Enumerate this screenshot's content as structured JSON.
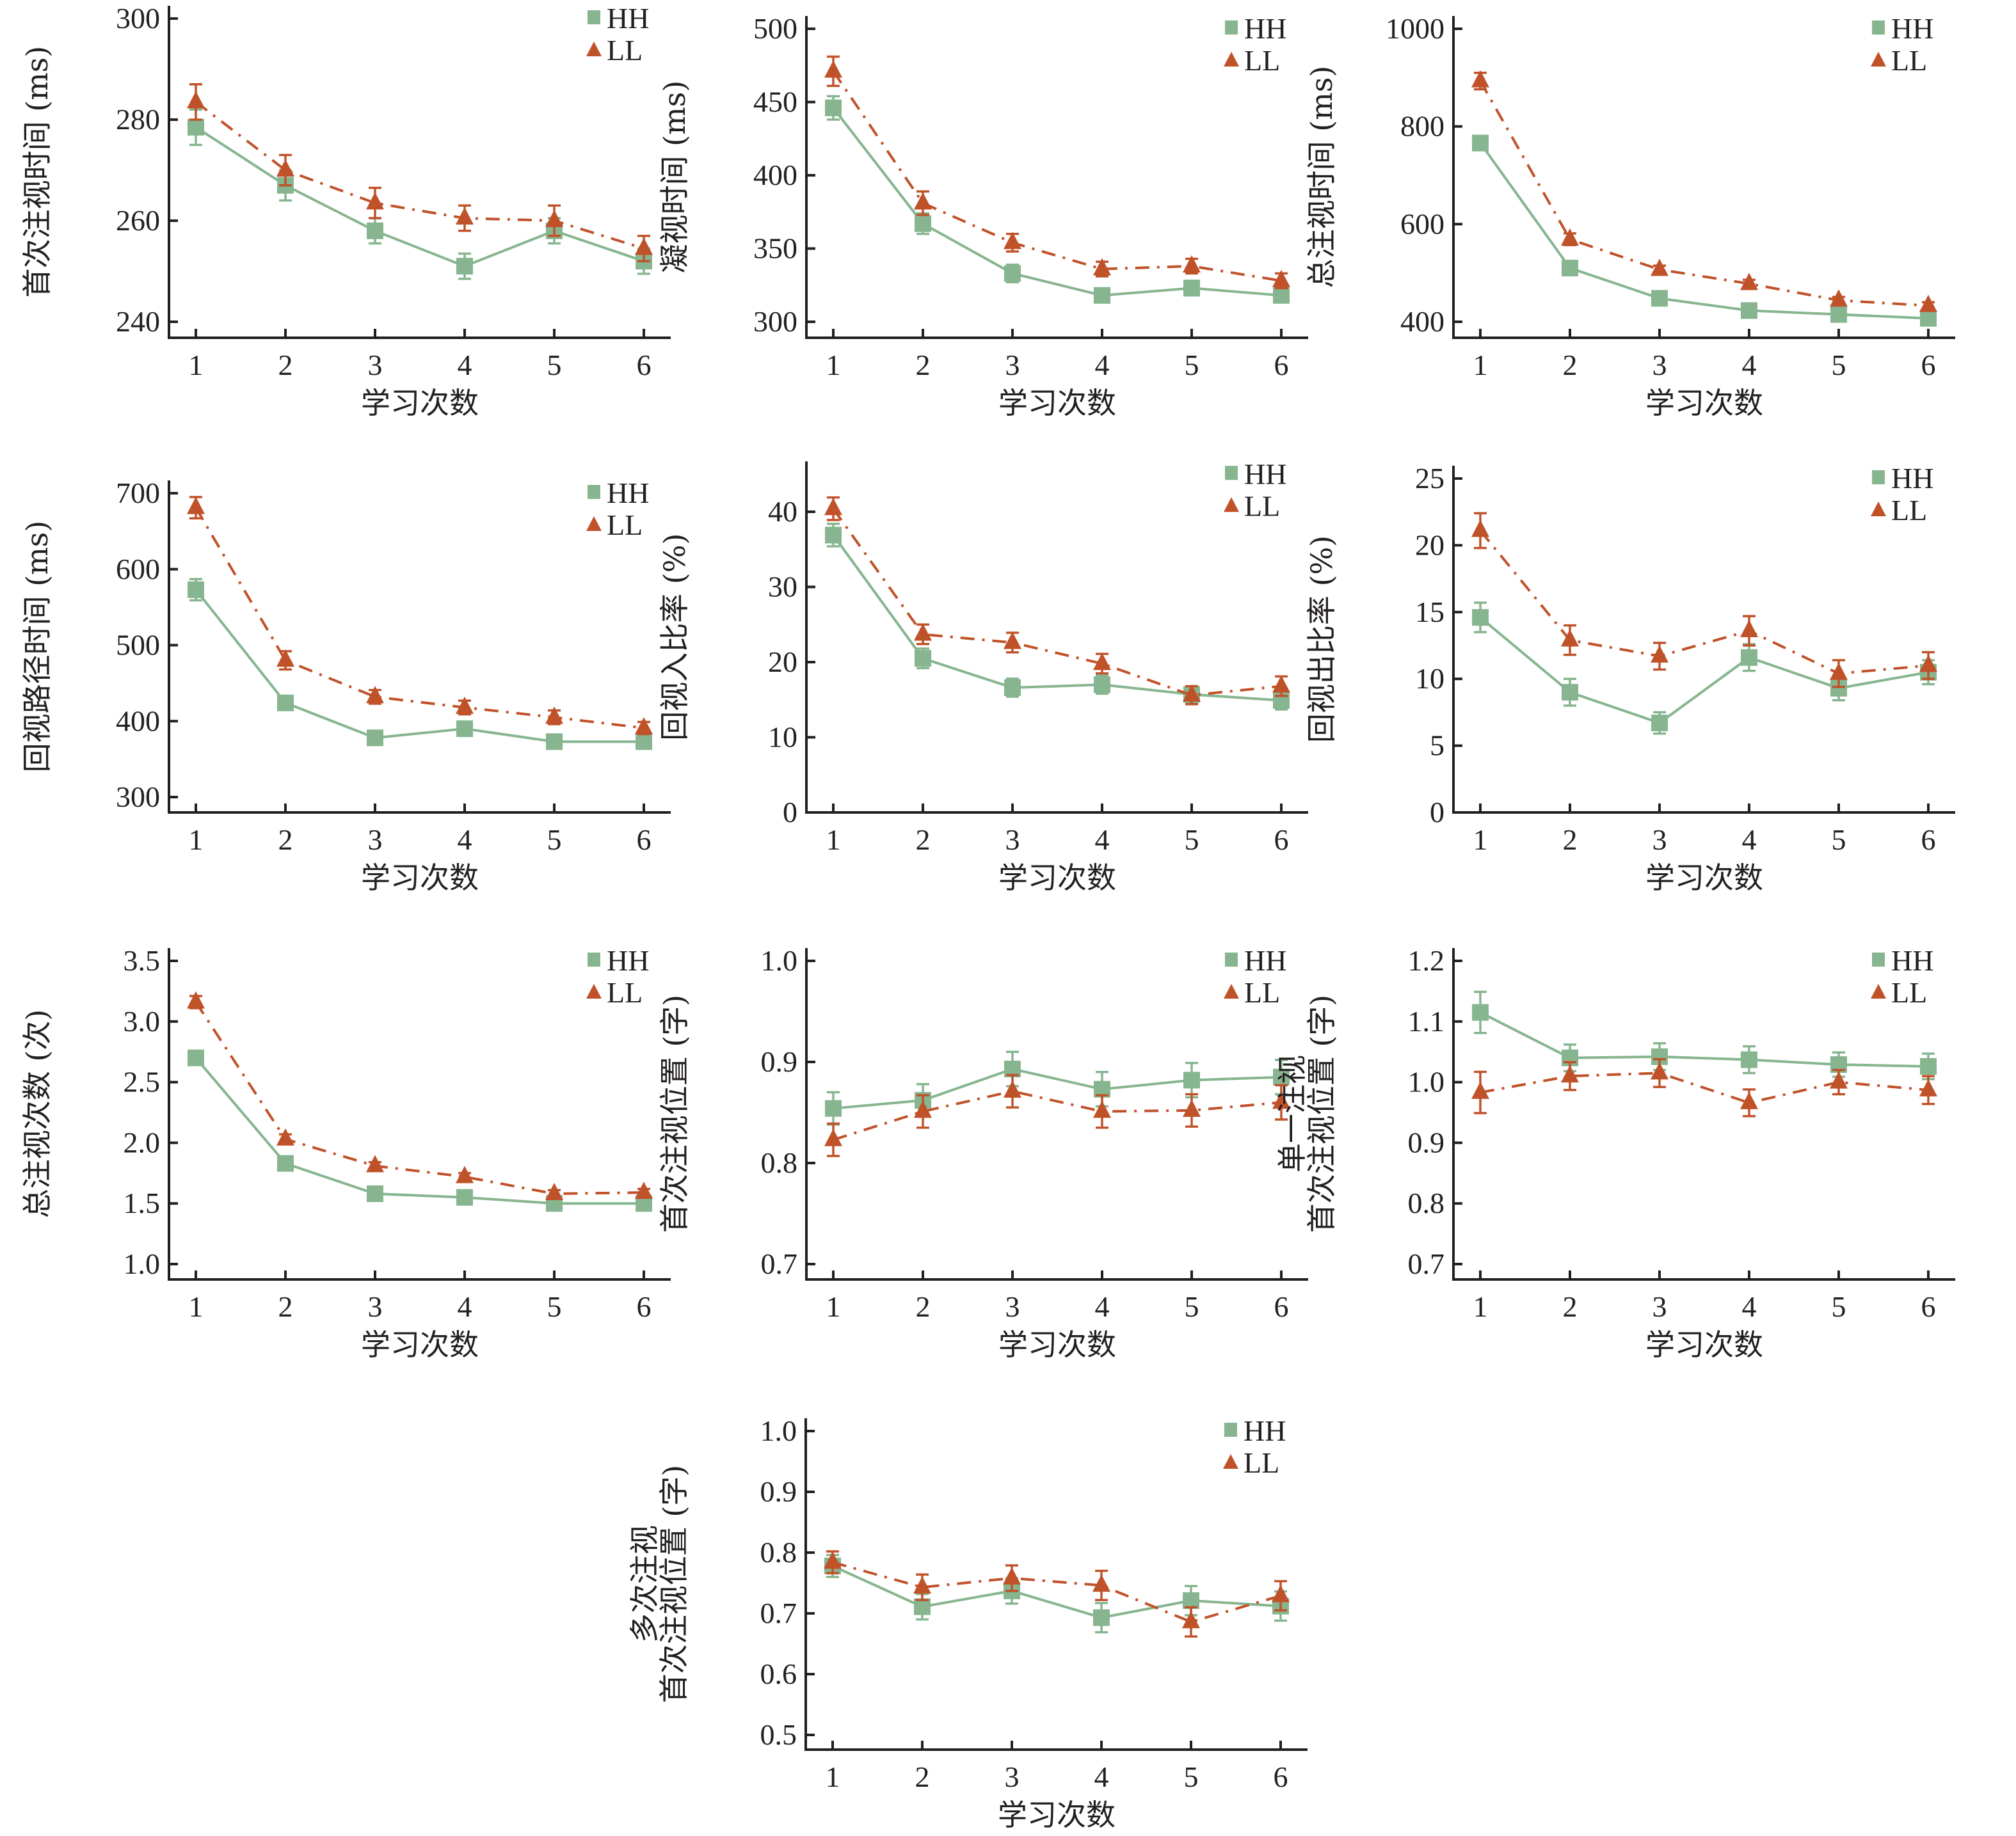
{
  "chart_data": [
    {
      "type": "line",
      "ylabel": "首次注视时间 (ms)",
      "xlabel": "学习次数",
      "categories": [
        "1",
        "2",
        "3",
        "4",
        "5",
        "6"
      ],
      "ylim": [
        240,
        300
      ],
      "yticks": [
        "240",
        "260",
        "280",
        "300"
      ],
      "legend": "top-right",
      "series": [
        {
          "name": "HH",
          "values": [
            278.5,
            267,
            258,
            251,
            258,
            252
          ],
          "errors": [
            3.5,
            3,
            2.5,
            2.5,
            2.5,
            2.5
          ]
        },
        {
          "name": "LL",
          "values": [
            283.5,
            270,
            263.5,
            260.5,
            260,
            254.5
          ],
          "errors": [
            3.5,
            3,
            3,
            2.5,
            3,
            2.5
          ]
        }
      ]
    },
    {
      "type": "line",
      "ylabel": "凝视时间 (ms)",
      "xlabel": "学习次数",
      "categories": [
        "1",
        "2",
        "3",
        "4",
        "5",
        "6"
      ],
      "ylim": [
        300,
        500
      ],
      "yticks": [
        "300",
        "350",
        "400",
        "450",
        "500"
      ],
      "legend": "top-right",
      "series": [
        {
          "name": "HH",
          "values": [
            446,
            367,
            333,
            318,
            323,
            318
          ],
          "errors": [
            8,
            7,
            6,
            4,
            5,
            4
          ]
        },
        {
          "name": "LL",
          "values": [
            471,
            381,
            354,
            336,
            338,
            328
          ],
          "errors": [
            10,
            8,
            6,
            5,
            5,
            5
          ]
        }
      ]
    },
    {
      "type": "line",
      "ylabel": "总注视时间 (ms)",
      "xlabel": "学习次数",
      "categories": [
        "1",
        "2",
        "3",
        "4",
        "5",
        "6"
      ],
      "ylim": [
        400,
        1000
      ],
      "yticks": [
        "400",
        "600",
        "800",
        "1000"
      ],
      "legend": "top-right",
      "series": [
        {
          "name": "HH",
          "values": [
            766,
            510,
            448,
            423,
            415,
            407
          ],
          "errors": [
            14,
            8,
            7,
            7,
            7,
            7
          ]
        },
        {
          "name": "LL",
          "values": [
            893,
            569,
            507,
            478,
            444,
            433
          ],
          "errors": [
            17,
            12,
            8,
            8,
            7,
            7
          ]
        }
      ]
    },
    {
      "type": "line",
      "ylabel": "回视路径时间 (ms)",
      "xlabel": "学习次数",
      "categories": [
        "1",
        "2",
        "3",
        "4",
        "5",
        "6"
      ],
      "ylim": [
        300,
        700
      ],
      "yticks": [
        "300",
        "400",
        "500",
        "600",
        "700"
      ],
      "legend": "top-right",
      "series": [
        {
          "name": "HH",
          "values": [
            573,
            424,
            378,
            390,
            373,
            373
          ],
          "errors": [
            14,
            9,
            8,
            8,
            7,
            7
          ]
        },
        {
          "name": "LL",
          "values": [
            681,
            480,
            432,
            418,
            405,
            391
          ],
          "errors": [
            14,
            12,
            9,
            9,
            9,
            8
          ]
        }
      ]
    },
    {
      "type": "line",
      "ylabel": "回视入比率 (%)",
      "xlabel": "学习次数",
      "categories": [
        "1",
        "2",
        "3",
        "4",
        "5",
        "6"
      ],
      "ylim": [
        0,
        45
      ],
      "yticks": [
        "0",
        "10",
        "20",
        "30",
        "40"
      ],
      "legend": "top-right",
      "series": [
        {
          "name": "HH",
          "values": [
            36.9,
            20.5,
            16.6,
            17.0,
            15.7,
            14.9
          ],
          "errors": [
            1.5,
            1.3,
            1.2,
            1.2,
            1.0,
            1.2
          ]
        },
        {
          "name": "LL",
          "values": [
            40.4,
            23.7,
            22.6,
            19.8,
            15.6,
            16.8
          ],
          "errors": [
            1.5,
            1.3,
            1.3,
            1.3,
            1.2,
            1.3
          ]
        }
      ]
    },
    {
      "type": "line",
      "ylabel": "回视出比率 (%)",
      "xlabel": "学习次数",
      "categories": [
        "1",
        "2",
        "3",
        "4",
        "5",
        "6"
      ],
      "ylim": [
        0,
        25
      ],
      "yticks": [
        "0",
        "5",
        "10",
        "15",
        "20",
        "25"
      ],
      "legend": "top-right",
      "series": [
        {
          "name": "HH",
          "values": [
            14.6,
            9.0,
            6.7,
            11.6,
            9.3,
            10.5
          ],
          "errors": [
            1.1,
            1.0,
            0.8,
            1.0,
            0.9,
            0.9
          ]
        },
        {
          "name": "LL",
          "values": [
            21.1,
            12.9,
            11.7,
            13.6,
            10.4,
            11.0
          ],
          "errors": [
            1.3,
            1.1,
            1.0,
            1.1,
            1.0,
            1.0
          ]
        }
      ]
    },
    {
      "type": "line",
      "ylabel": "总注视次数 (次)",
      "xlabel": "学习次数",
      "categories": [
        "1",
        "2",
        "3",
        "4",
        "5",
        "6"
      ],
      "ylim": [
        1.0,
        3.5
      ],
      "yticks": [
        "1.0",
        "1.5",
        "2.0",
        "2.5",
        "3.0",
        "3.5"
      ],
      "legend": "top-right",
      "series": [
        {
          "name": "HH",
          "values": [
            2.7,
            1.83,
            1.58,
            1.55,
            1.5,
            1.5
          ],
          "errors": [
            0.04,
            0.02,
            0.02,
            0.02,
            0.02,
            0.02
          ]
        },
        {
          "name": "LL",
          "values": [
            3.16,
            2.03,
            1.81,
            1.72,
            1.58,
            1.59
          ],
          "errors": [
            0.05,
            0.04,
            0.03,
            0.03,
            0.03,
            0.03
          ]
        }
      ]
    },
    {
      "type": "line",
      "ylabel": "首次注视位置 (字)",
      "xlabel": "学习次数",
      "categories": [
        "1",
        "2",
        "3",
        "4",
        "5",
        "6"
      ],
      "ylim": [
        0.7,
        1.0
      ],
      "yticks": [
        "0.7",
        "0.8",
        "0.9",
        "1.0"
      ],
      "legend": "top-right",
      "series": [
        {
          "name": "HH",
          "values": [
            0.854,
            0.862,
            0.893,
            0.873,
            0.882,
            0.885
          ],
          "errors": [
            0.016,
            0.016,
            0.017,
            0.017,
            0.017,
            0.017
          ]
        },
        {
          "name": "LL",
          "values": [
            0.823,
            0.851,
            0.871,
            0.851,
            0.852,
            0.86
          ],
          "errors": [
            0.016,
            0.016,
            0.016,
            0.016,
            0.016,
            0.017
          ]
        }
      ]
    },
    {
      "type": "line",
      "ylabel": "单一注视首次注视位置 (字)",
      "ylabel_lines": [
        "单一注视",
        "首次注视位置 (字)"
      ],
      "xlabel": "学习次数",
      "categories": [
        "1",
        "2",
        "3",
        "4",
        "5",
        "6"
      ],
      "ylim": [
        0.7,
        1.2
      ],
      "yticks": [
        "0.7",
        "0.8",
        "0.9",
        "1.0",
        "1.1",
        "1.2"
      ],
      "legend": "top-right",
      "series": [
        {
          "name": "HH",
          "values": [
            1.115,
            1.04,
            1.042,
            1.037,
            1.029,
            1.026
          ],
          "errors": [
            0.034,
            0.022,
            0.022,
            0.022,
            0.02,
            0.021
          ]
        },
        {
          "name": "LL",
          "values": [
            0.983,
            1.01,
            1.015,
            0.966,
            1.0,
            0.987
          ],
          "errors": [
            0.034,
            0.023,
            0.023,
            0.022,
            0.02,
            0.023
          ]
        }
      ]
    },
    {
      "type": "line",
      "ylabel": "多次注视首次注视位置 (字)",
      "ylabel_lines": [
        "多次注视",
        "首次注视位置 (字)"
      ],
      "xlabel": "学习次数",
      "categories": [
        "1",
        "2",
        "3",
        "4",
        "5",
        "6"
      ],
      "ylim": [
        0.5,
        1.0
      ],
      "yticks": [
        "0.5",
        "0.6",
        "0.7",
        "0.8",
        "0.9",
        "1.0"
      ],
      "legend": "top-right",
      "series": [
        {
          "name": "HH",
          "values": [
            0.778,
            0.711,
            0.737,
            0.693,
            0.721,
            0.712
          ],
          "errors": [
            0.018,
            0.021,
            0.021,
            0.024,
            0.024,
            0.024
          ]
        },
        {
          "name": "LL",
          "values": [
            0.784,
            0.743,
            0.758,
            0.746,
            0.686,
            0.729
          ],
          "errors": [
            0.018,
            0.021,
            0.021,
            0.024,
            0.024,
            0.024
          ]
        }
      ]
    }
  ],
  "colors": {
    "HH": "#86b58f",
    "LL": "#c0522a",
    "axis": "#231f20"
  }
}
